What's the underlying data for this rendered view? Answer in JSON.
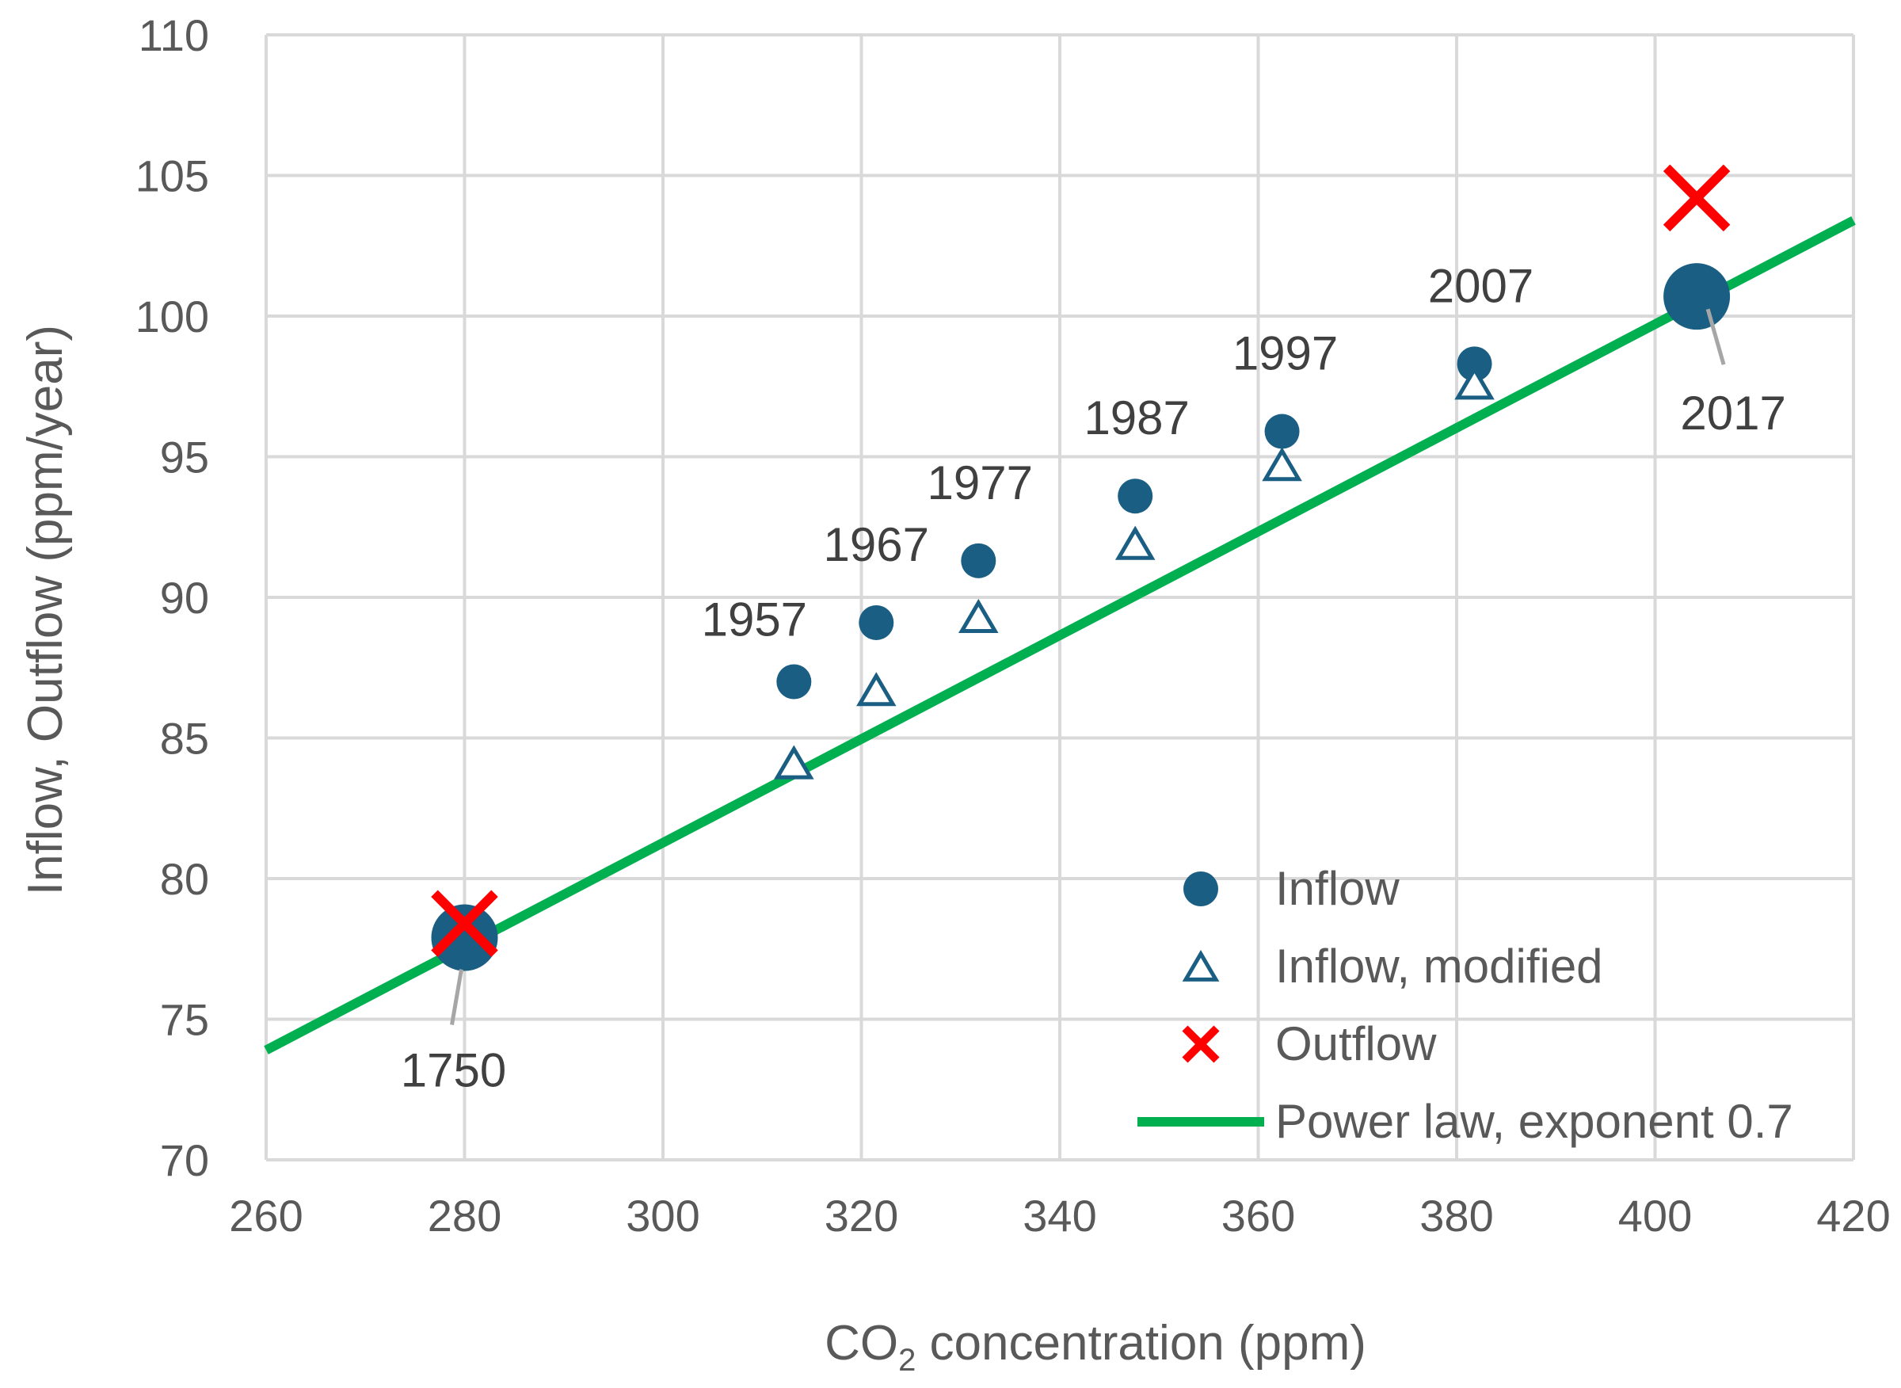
{
  "chart_data": {
    "type": "scatter",
    "xlabel": "CO",
    "xlabel_sub": "2",
    "xlabel_rest": " concentration (ppm)",
    "ylabel": "Inflow, Outflow (ppm/year)",
    "xlim": [
      260,
      420
    ],
    "ylim": [
      70,
      110
    ],
    "xticks": [
      260,
      280,
      300,
      320,
      340,
      360,
      380,
      400,
      420
    ],
    "yticks": [
      70,
      75,
      80,
      85,
      90,
      95,
      100,
      105,
      110
    ],
    "grid": true,
    "legend_position": "bottom-right",
    "colors": {
      "inflow": "#1a5e83",
      "outflow": "#ff0000",
      "power_law": "#00b050",
      "grid": "#d9d9d9",
      "leader": "#a6a6a6"
    },
    "series": [
      {
        "name": "Inflow",
        "marker": "filled-circle",
        "points": [
          {
            "x": 280,
            "y": 77.9,
            "label": "1750",
            "big": true
          },
          {
            "x": 313.2,
            "y": 87.0,
            "label": "1957"
          },
          {
            "x": 321.5,
            "y": 89.1,
            "label": "1967"
          },
          {
            "x": 331.8,
            "y": 91.3,
            "label": "1977"
          },
          {
            "x": 347.6,
            "y": 93.6,
            "label": "1987"
          },
          {
            "x": 362.4,
            "y": 95.9,
            "label": "1997"
          },
          {
            "x": 381.8,
            "y": 98.3,
            "label": "2007"
          },
          {
            "x": 404.2,
            "y": 100.7,
            "label": "2017",
            "big": true
          }
        ]
      },
      {
        "name": "Inflow, modified",
        "marker": "open-triangle",
        "points": [
          {
            "x": 313.2,
            "y": 84.1
          },
          {
            "x": 321.5,
            "y": 86.7
          },
          {
            "x": 331.8,
            "y": 89.3
          },
          {
            "x": 347.6,
            "y": 91.9
          },
          {
            "x": 362.4,
            "y": 94.7
          },
          {
            "x": 381.8,
            "y": 97.6
          }
        ]
      },
      {
        "name": "Outflow",
        "marker": "x",
        "points": [
          {
            "x": 280,
            "y": 78.4
          },
          {
            "x": 404.2,
            "y": 104.2
          }
        ]
      },
      {
        "name": "Power law, exponent 0.7",
        "marker": "line",
        "points": [
          {
            "x": 260,
            "y": 73.9
          },
          {
            "x": 420,
            "y": 103.4
          }
        ]
      }
    ]
  }
}
